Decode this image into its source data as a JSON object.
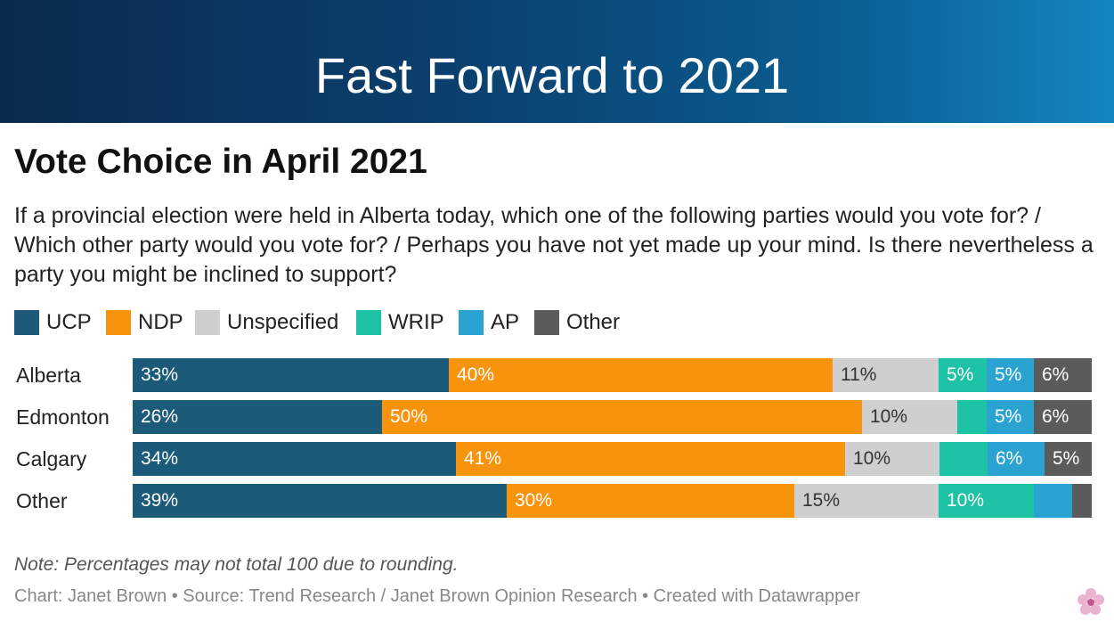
{
  "banner": {
    "title": "Fast Forward to 2021"
  },
  "chart": {
    "title": "Vote Choice in April 2021",
    "question": "If a provincial election were held in Alberta today, which one of the following parties would you vote for? / Which other party would you vote for? / Perhaps you have not yet made up your mind. Is there nevertheless a party you might be inclined to support?",
    "note": "Note: Percentages may not total 100 due to rounding.",
    "credits": "Chart: Janet Brown • Source: Trend Research / Janet Brown Opinion Research • Created with Datawrapper"
  },
  "legend": [
    {
      "name": "UCP",
      "color": "#1c5a79"
    },
    {
      "name": "NDP",
      "color": "#f7930c"
    },
    {
      "name": "Unspecified",
      "color": "#cfcfcf"
    },
    {
      "name": "WRIP",
      "color": "#1ec3a5"
    },
    {
      "name": "AP",
      "color": "#2aa3d2"
    },
    {
      "name": "Other",
      "color": "#5b5b5b"
    }
  ],
  "chart_data": {
    "type": "bar",
    "orientation": "horizontal",
    "stacked": true,
    "title": "Vote Choice in April 2021",
    "categories": [
      "Alberta",
      "Edmonton",
      "Calgary",
      "Other"
    ],
    "series": [
      {
        "name": "UCP",
        "values": [
          33,
          26,
          34,
          39
        ],
        "labels": [
          "33%",
          "26%",
          "34%",
          "39%"
        ]
      },
      {
        "name": "NDP",
        "values": [
          40,
          50,
          41,
          30
        ],
        "labels": [
          "40%",
          "50%",
          "41%",
          "30%"
        ]
      },
      {
        "name": "Unspecified",
        "values": [
          11,
          10,
          10,
          15
        ],
        "labels": [
          "11%",
          "10%",
          "10%",
          "15%"
        ]
      },
      {
        "name": "WRIP",
        "values": [
          5,
          3,
          5,
          10
        ],
        "labels": [
          "5%",
          "",
          "",
          "10%"
        ]
      },
      {
        "name": "AP",
        "values": [
          5,
          5,
          6,
          4
        ],
        "labels": [
          "5%",
          "5%",
          "6%",
          ""
        ]
      },
      {
        "name": "Other",
        "values": [
          6,
          6,
          5,
          2
        ],
        "labels": [
          "6%",
          "6%",
          "5%",
          ""
        ]
      }
    ],
    "label_colors": [
      "#ffffff",
      "#ffffff",
      "#333333",
      "#ffffff",
      "#ffffff",
      "#ffffff"
    ],
    "xlim": [
      0,
      100
    ],
    "legend_position": "top-left"
  }
}
